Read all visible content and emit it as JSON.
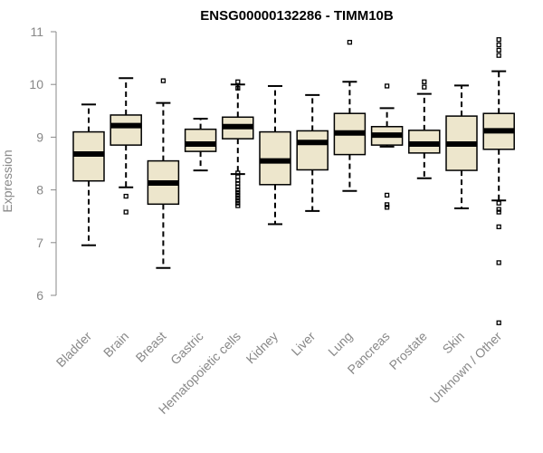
{
  "chart_data": {
    "type": "boxplot",
    "title": "ENSG00000132286 - TIMM10B",
    "xlabel": "",
    "ylabel": "Expression",
    "ylim": [
      5.4,
      11.0
    ],
    "yticks": [
      6,
      7,
      8,
      9,
      10,
      11
    ],
    "box_color": "#ede6cc",
    "categories": [
      "Bladder",
      "Brain",
      "Breast",
      "Gastric",
      "Hematopoietic cells",
      "Kidney",
      "Liver",
      "Lung",
      "Pancreas",
      "Prostate",
      "Skin",
      "Unknown / Other"
    ],
    "boxes": [
      {
        "name": "Bladder",
        "whisker_low": 6.95,
        "q1": 8.17,
        "median": 8.68,
        "q3": 9.1,
        "whisker_high": 9.62,
        "outliers": []
      },
      {
        "name": "Brain",
        "whisker_low": 8.05,
        "q1": 8.85,
        "median": 9.22,
        "q3": 9.42,
        "whisker_high": 10.12,
        "outliers": [
          7.88,
          7.58
        ]
      },
      {
        "name": "Breast",
        "whisker_low": 6.52,
        "q1": 7.73,
        "median": 8.13,
        "q3": 8.55,
        "whisker_high": 9.65,
        "outliers": [
          10.07
        ]
      },
      {
        "name": "Gastric",
        "whisker_low": 8.37,
        "q1": 8.73,
        "median": 8.87,
        "q3": 9.15,
        "whisker_high": 9.35,
        "outliers": []
      },
      {
        "name": "Hematopoietic cells",
        "whisker_low": 8.3,
        "q1": 8.97,
        "median": 9.2,
        "q3": 9.38,
        "whisker_high": 10.0,
        "outliers": [
          10.05,
          9.93,
          8.32,
          8.25,
          8.18,
          8.12,
          8.06,
          8.0,
          7.95,
          7.9,
          7.85,
          7.8,
          7.75,
          7.7
        ]
      },
      {
        "name": "Kidney",
        "whisker_low": 7.35,
        "q1": 8.1,
        "median": 8.55,
        "q3": 9.1,
        "whisker_high": 9.97,
        "outliers": []
      },
      {
        "name": "Liver",
        "whisker_low": 7.6,
        "q1": 8.38,
        "median": 8.9,
        "q3": 9.12,
        "whisker_high": 9.8,
        "outliers": []
      },
      {
        "name": "Lung",
        "whisker_low": 7.98,
        "q1": 8.67,
        "median": 9.08,
        "q3": 9.45,
        "whisker_high": 10.05,
        "outliers": [
          10.8
        ]
      },
      {
        "name": "Pancreas",
        "whisker_low": 8.82,
        "q1": 8.85,
        "median": 9.04,
        "q3": 9.2,
        "whisker_high": 9.55,
        "outliers": [
          9.97,
          7.9,
          7.72,
          7.67
        ]
      },
      {
        "name": "Prostate",
        "whisker_low": 8.22,
        "q1": 8.7,
        "median": 8.87,
        "q3": 9.13,
        "whisker_high": 9.82,
        "outliers": [
          10.05,
          9.95
        ]
      },
      {
        "name": "Skin",
        "whisker_low": 7.65,
        "q1": 8.37,
        "median": 8.87,
        "q3": 9.4,
        "whisker_high": 9.98,
        "outliers": []
      },
      {
        "name": "Unknown / Other",
        "whisker_low": 7.8,
        "q1": 8.77,
        "median": 9.12,
        "q3": 9.45,
        "whisker_high": 10.25,
        "outliers": [
          10.85,
          10.75,
          10.65,
          10.55,
          7.75,
          7.63,
          7.58,
          7.3,
          6.62,
          5.48
        ]
      }
    ]
  }
}
